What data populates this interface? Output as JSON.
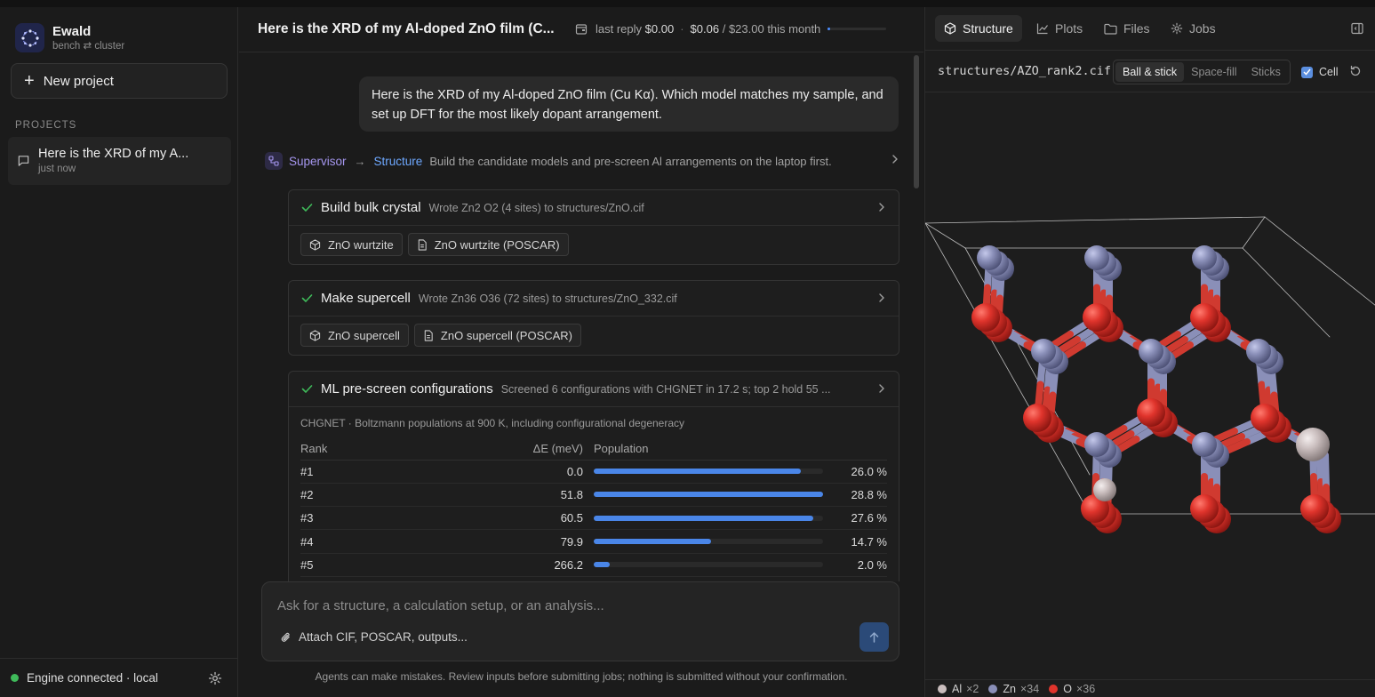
{
  "app": {
    "name": "Ewald",
    "subtitle": "bench ⇄ cluster",
    "new_project_label": "New project",
    "projects_heading": "PROJECTS",
    "projects": [
      {
        "title": "Here is the XRD of my A...",
        "time": "just now"
      }
    ],
    "engine_status": "Engine connected · local",
    "engine_status_color": "#3fba5a"
  },
  "chat": {
    "title": "Here is the XRD of my Al-doped ZnO film (C...",
    "cost": {
      "last_reply_label": "last reply",
      "last_reply_value": "$0.00",
      "month_value": "$0.06",
      "month_rest": "/ $23.00 this month",
      "month_fraction": 0.0026
    },
    "user_message": "Here is the XRD of my Al-doped ZnO film (Cu Kα). Which model matches my sample, and set up DFT for the most likely dopant arrangement.",
    "route": {
      "from": "Supervisor",
      "to": "Structure",
      "description": "Build the candidate models and pre-screen Al arrangements on the laptop first."
    },
    "steps": [
      {
        "title": "Build bulk crystal",
        "summary": "Wrote Zn2 O2 (4 sites) to structures/ZnO.cif",
        "chips": [
          {
            "label": "ZnO wurtzite",
            "icon": "cube-icon"
          },
          {
            "label": "ZnO wurtzite (POSCAR)",
            "icon": "file-icon"
          }
        ]
      },
      {
        "title": "Make supercell",
        "summary": "Wrote Zn36 O36 (72 sites) to structures/ZnO_332.cif",
        "chips": [
          {
            "label": "ZnO supercell",
            "icon": "cube-icon"
          },
          {
            "label": "ZnO supercell (POSCAR)",
            "icon": "file-icon"
          }
        ]
      },
      {
        "title": "ML pre-screen configurations",
        "summary": "Screened 6 configurations with CHGNET in 17.2 s; top 2 hold 55 ...",
        "caption": "CHGNET · Boltzmann populations at 900 K, including configurational degeneracy",
        "columns": [
          "Rank",
          "ΔE (meV)",
          "Population"
        ],
        "rows": [
          {
            "rank": "#1",
            "de": "0.0",
            "pop": 26.0,
            "pop_label": "26.0 %"
          },
          {
            "rank": "#2",
            "de": "51.8",
            "pop": 28.8,
            "pop_label": "28.8 %"
          },
          {
            "rank": "#3",
            "de": "60.5",
            "pop": 27.6,
            "pop_label": "27.6 %"
          },
          {
            "rank": "#4",
            "de": "79.9",
            "pop": 14.7,
            "pop_label": "14.7 %"
          },
          {
            "rank": "#5",
            "de": "266.2",
            "pop": 2.0,
            "pop_label": "2.0 %"
          }
        ]
      }
    ],
    "composer": {
      "placeholder": "Ask for a structure, a calculation setup, or an analysis...",
      "attach_label": "Attach CIF, POSCAR, outputs..."
    },
    "disclaimer": "Agents can make mistakes. Review inputs before submitting jobs; nothing is submitted without your confirmation."
  },
  "panel": {
    "tabs": [
      {
        "label": "Structure",
        "icon": "cube-icon"
      },
      {
        "label": "Plots",
        "icon": "line-chart-icon"
      },
      {
        "label": "Files",
        "icon": "folder-icon"
      },
      {
        "label": "Jobs",
        "icon": "gear-icon"
      }
    ],
    "active_tab": "Structure",
    "file_path": "structures/AZO_rank2.cif",
    "view_modes": [
      "Ball & stick",
      "Space-fill",
      "Sticks"
    ],
    "active_view": "Ball & stick",
    "cell_label": "Cell",
    "cell_checked": true,
    "legend": [
      {
        "element": "Al",
        "count": "×2",
        "color": "#c9bdbd"
      },
      {
        "element": "Zn",
        "count": "×34",
        "color": "#8a8fb8"
      },
      {
        "element": "O",
        "count": "×36",
        "color": "#e0342c"
      }
    ]
  }
}
